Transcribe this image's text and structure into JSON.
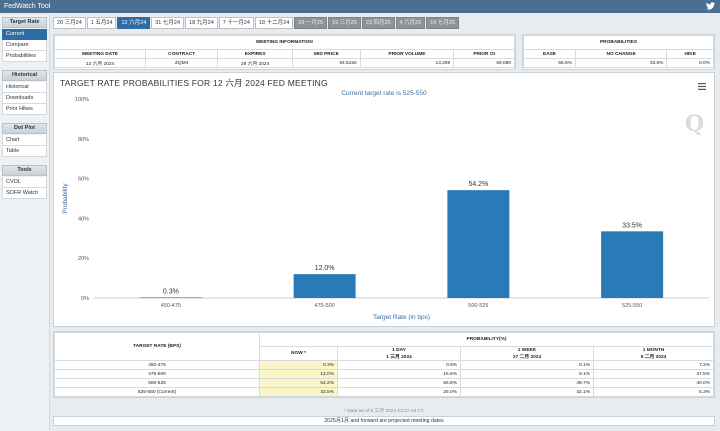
{
  "app": {
    "title": "FedWatch Tool"
  },
  "sidebar": {
    "target_rate_heading": "Target Rate",
    "target_rate_items": [
      "Current",
      "Compare",
      "Probabilities"
    ],
    "historical_heading": "Historical",
    "historical_items": [
      "Historical",
      "Downloads",
      "Prior Hikes"
    ],
    "dot_plot_heading": "Dot Plot",
    "dot_plot_items": [
      "Chart",
      "Table"
    ],
    "tools_heading": "Tools",
    "tools_items": [
      "CVOL",
      "SOFR Watch"
    ]
  },
  "tabs": [
    {
      "label": "20 三月24",
      "state": "normal"
    },
    {
      "label": "1 五月24",
      "state": "normal"
    },
    {
      "label": "12 六月24",
      "state": "active"
    },
    {
      "label": "31 七月24",
      "state": "normal"
    },
    {
      "label": "18 九月24",
      "state": "normal"
    },
    {
      "label": "7 十一月24",
      "state": "normal"
    },
    {
      "label": "18 十二月24",
      "state": "normal"
    },
    {
      "label": "29 一月25",
      "state": "proj"
    },
    {
      "label": "19 三月25",
      "state": "proj"
    },
    {
      "label": "23 四月25",
      "state": "proj"
    },
    {
      "label": "4 六月25",
      "state": "proj"
    },
    {
      "label": "16 七月25",
      "state": "proj"
    }
  ],
  "meeting_info": {
    "heading": "MEETING INFORMATION",
    "headers": [
      "MEETING DATE",
      "CONTRACT",
      "EXPIRES",
      "MID PRICE",
      "PRIOR VOLUME",
      "PRIOR OI"
    ],
    "values": [
      "12 六月 2024",
      "ZQM4",
      "28 六月 2024",
      "94.6150",
      "13,289",
      "69,080"
    ]
  },
  "probabilities": {
    "heading": "PROBABILITIES",
    "headers": [
      "EASE",
      "NO CHANGE",
      "HIKE"
    ],
    "values": [
      "66.5%",
      "33.5%",
      "0.0%"
    ]
  },
  "chart": {
    "title": "TARGET RATE PROBABILITIES FOR 12 六月 2024 FED MEETING",
    "subtitle": "Current target rate is 525-550"
  },
  "chart_data": {
    "type": "bar",
    "title": "TARGET RATE PROBABILITIES FOR 12 六月 2024 FED MEETING",
    "subtitle": "Current target rate is 525-550",
    "categories": [
      "450-475",
      "475-500",
      "500-525",
      "525-550"
    ],
    "values": [
      0.3,
      12.0,
      54.2,
      33.5
    ],
    "data_labels": [
      "0.3%",
      "12.0%",
      "54.2%",
      "33.5%"
    ],
    "xlabel": "Target Rate (in bps)",
    "ylabel": "Probability",
    "ylim": [
      0,
      100
    ],
    "yticks": [
      0,
      20,
      40,
      60,
      80,
      100
    ],
    "ytick_labels": [
      "0%",
      "20%",
      "40%",
      "60%",
      "80%",
      "100%"
    ],
    "bar_color": "#2a7ab8",
    "grid": false
  },
  "prob_table": {
    "col_target": "TARGET RATE (BPS)",
    "col_prob": "PROBABILITY(%)",
    "sub_headers": [
      {
        "line1": "NOW *",
        "line2": ""
      },
      {
        "line1": "1 DAY",
        "line2": "1 三月 2024"
      },
      {
        "line1": "1 WEEK",
        "line2": "27 二月 2024"
      },
      {
        "line1": "1 MONTH",
        "line2": "5 二月 2024"
      }
    ],
    "rows": [
      {
        "rate": "450-475",
        "now": "0.3%",
        "day": "0.6%",
        "week": "0.1%",
        "month": "7.2%"
      },
      {
        "rate": "475-500",
        "now": "12.0%",
        "day": "16.6%",
        "week": "8.1%",
        "month": "47.5%"
      },
      {
        "rate": "500-525",
        "now": "54.2%",
        "day": "56.8%",
        "week": "49.7%",
        "month": "40.0%"
      },
      {
        "rate": "525-550 (Current)",
        "now": "33.5%",
        "day": "26.0%",
        "week": "42.1%",
        "month": "5.3%"
      }
    ]
  },
  "footnote": "* Data as of 5 三月 2024 12:27:16 CT",
  "footer": "2025月1月 and forward are projected meeting dates"
}
